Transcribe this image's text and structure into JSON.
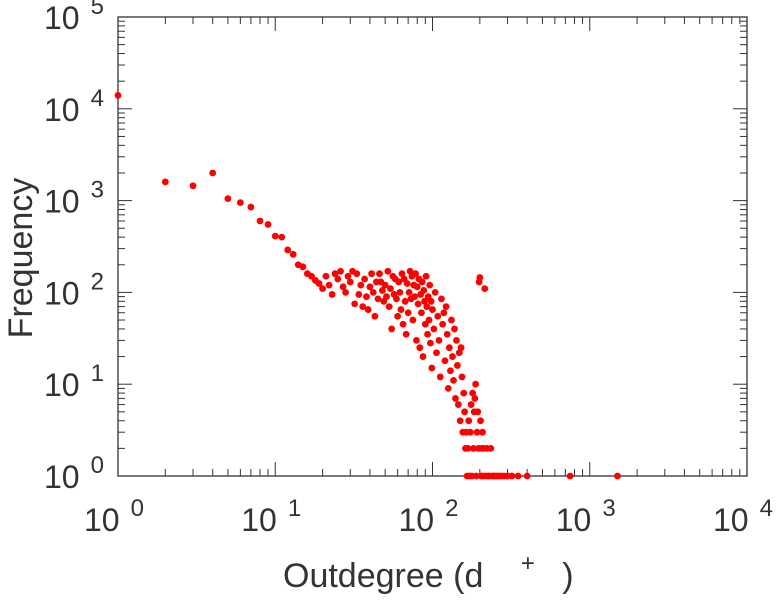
{
  "chart_data": {
    "type": "scatter",
    "title": "",
    "xlabel": "Outdegree (d",
    "xlabel_superscript": "+",
    "xlabel_suffix": ")",
    "ylabel": "Frequency",
    "x_scale": "log",
    "y_scale": "log",
    "xlim": [
      1,
      10000
    ],
    "ylim": [
      1,
      100000
    ],
    "x_tick_labels": [
      {
        "base": "10",
        "exp": "0"
      },
      {
        "base": "10",
        "exp": "1"
      },
      {
        "base": "10",
        "exp": "2"
      },
      {
        "base": "10",
        "exp": "3"
      },
      {
        "base": "10",
        "exp": "4"
      }
    ],
    "y_tick_labels": [
      {
        "base": "10",
        "exp": "0"
      },
      {
        "base": "10",
        "exp": "1"
      },
      {
        "base": "10",
        "exp": "2"
      },
      {
        "base": "10",
        "exp": "3"
      },
      {
        "base": "10",
        "exp": "4"
      },
      {
        "base": "10",
        "exp": "5"
      }
    ],
    "grid": false,
    "legend": "none",
    "marker_color": "#ff0000",
    "points": [
      [
        1,
        14000
      ],
      [
        2,
        1600
      ],
      [
        3,
        1450
      ],
      [
        4,
        2000
      ],
      [
        5,
        1050
      ],
      [
        6,
        950
      ],
      [
        7,
        850
      ],
      [
        8,
        600
      ],
      [
        9,
        550
      ],
      [
        10,
        410
      ],
      [
        11,
        400
      ],
      [
        12,
        290
      ],
      [
        13,
        260
      ],
      [
        14,
        200
      ],
      [
        15,
        190
      ],
      [
        16,
        160
      ],
      [
        17,
        150
      ],
      [
        18,
        135
      ],
      [
        19,
        125
      ],
      [
        20,
        110
      ],
      [
        21,
        150
      ],
      [
        22,
        120
      ],
      [
        23,
        95
      ],
      [
        24,
        160
      ],
      [
        25,
        140
      ],
      [
        26,
        170
      ],
      [
        27,
        115
      ],
      [
        28,
        100
      ],
      [
        29,
        150
      ],
      [
        30,
        130
      ],
      [
        31,
        170
      ],
      [
        32,
        75
      ],
      [
        33,
        160
      ],
      [
        34,
        95
      ],
      [
        35,
        120
      ],
      [
        36,
        70
      ],
      [
        37,
        140
      ],
      [
        38,
        90
      ],
      [
        39,
        65
      ],
      [
        40,
        115
      ],
      [
        41,
        160
      ],
      [
        42,
        100
      ],
      [
        43,
        55
      ],
      [
        44,
        130
      ],
      [
        45,
        85
      ],
      [
        46,
        160
      ],
      [
        47,
        130
      ],
      [
        48,
        105
      ],
      [
        49,
        80
      ],
      [
        50,
        120
      ],
      [
        51,
        90
      ],
      [
        52,
        170
      ],
      [
        53,
        70
      ],
      [
        54,
        110
      ],
      [
        55,
        40
      ],
      [
        56,
        150
      ],
      [
        57,
        95
      ],
      [
        58,
        140
      ],
      [
        59,
        85
      ],
      [
        60,
        55
      ],
      [
        61,
        130
      ],
      [
        62,
        100
      ],
      [
        63,
        65
      ],
      [
        64,
        160
      ],
      [
        65,
        45
      ],
      [
        66,
        140
      ],
      [
        67,
        80
      ],
      [
        68,
        35
      ],
      [
        69,
        125
      ],
      [
        70,
        60
      ],
      [
        71,
        100
      ],
      [
        72,
        170
      ],
      [
        73,
        85
      ],
      [
        74,
        150
      ],
      [
        75,
        50
      ],
      [
        76,
        120
      ],
      [
        77,
        90
      ],
      [
        78,
        160
      ],
      [
        79,
        30
      ],
      [
        80,
        115
      ],
      [
        81,
        75
      ],
      [
        82,
        140
      ],
      [
        83,
        25
      ],
      [
        84,
        95
      ],
      [
        85,
        60
      ],
      [
        86,
        130
      ],
      [
        87,
        20
      ],
      [
        88,
        105
      ],
      [
        89,
        80
      ],
      [
        90,
        45
      ],
      [
        91,
        150
      ],
      [
        92,
        70
      ],
      [
        93,
        35
      ],
      [
        94,
        90
      ],
      [
        95,
        50
      ],
      [
        96,
        120
      ],
      [
        97,
        28
      ],
      [
        98,
        80
      ],
      [
        99,
        15
      ],
      [
        100,
        65
      ],
      [
        102,
        40
      ],
      [
        104,
        100
      ],
      [
        106,
        22
      ],
      [
        108,
        55
      ],
      [
        110,
        30
      ],
      [
        112,
        12
      ],
      [
        114,
        85
      ],
      [
        116,
        45
      ],
      [
        118,
        60
      ],
      [
        120,
        18
      ],
      [
        122,
        70
      ],
      [
        124,
        35
      ],
      [
        126,
        9
      ],
      [
        128,
        25
      ],
      [
        130,
        14
      ],
      [
        132,
        50
      ],
      [
        134,
        20
      ],
      [
        136,
        11
      ],
      [
        138,
        40
      ],
      [
        140,
        7
      ],
      [
        142,
        30
      ],
      [
        144,
        16
      ],
      [
        146,
        6
      ],
      [
        148,
        22
      ],
      [
        150,
        4
      ],
      [
        152,
        25
      ],
      [
        154,
        12
      ],
      [
        156,
        3
      ],
      [
        158,
        8
      ],
      [
        160,
        5
      ],
      [
        162,
        2
      ],
      [
        164,
        3
      ],
      [
        166,
        1
      ],
      [
        168,
        2
      ],
      [
        170,
        4
      ],
      [
        172,
        1
      ],
      [
        174,
        3
      ],
      [
        176,
        6
      ],
      [
        178,
        1
      ],
      [
        180,
        8
      ],
      [
        182,
        2
      ],
      [
        184,
        5
      ],
      [
        186,
        7
      ],
      [
        188,
        10
      ],
      [
        190,
        1
      ],
      [
        192,
        3
      ],
      [
        194,
        5
      ],
      [
        196,
        2
      ],
      [
        198,
        130
      ],
      [
        200,
        145
      ],
      [
        202,
        4
      ],
      [
        204,
        1
      ],
      [
        206,
        2
      ],
      [
        208,
        3
      ],
      [
        210,
        1
      ],
      [
        212,
        2
      ],
      [
        215,
        110
      ],
      [
        218,
        1
      ],
      [
        222,
        2
      ],
      [
        226,
        1
      ],
      [
        230,
        1
      ],
      [
        235,
        2
      ],
      [
        240,
        1
      ],
      [
        245,
        1
      ],
      [
        250,
        1
      ],
      [
        258,
        1
      ],
      [
        265,
        1
      ],
      [
        275,
        1
      ],
      [
        285,
        1
      ],
      [
        300,
        1
      ],
      [
        320,
        1
      ],
      [
        350,
        1
      ],
      [
        400,
        1
      ],
      [
        750,
        1
      ],
      [
        1500,
        1
      ]
    ]
  }
}
